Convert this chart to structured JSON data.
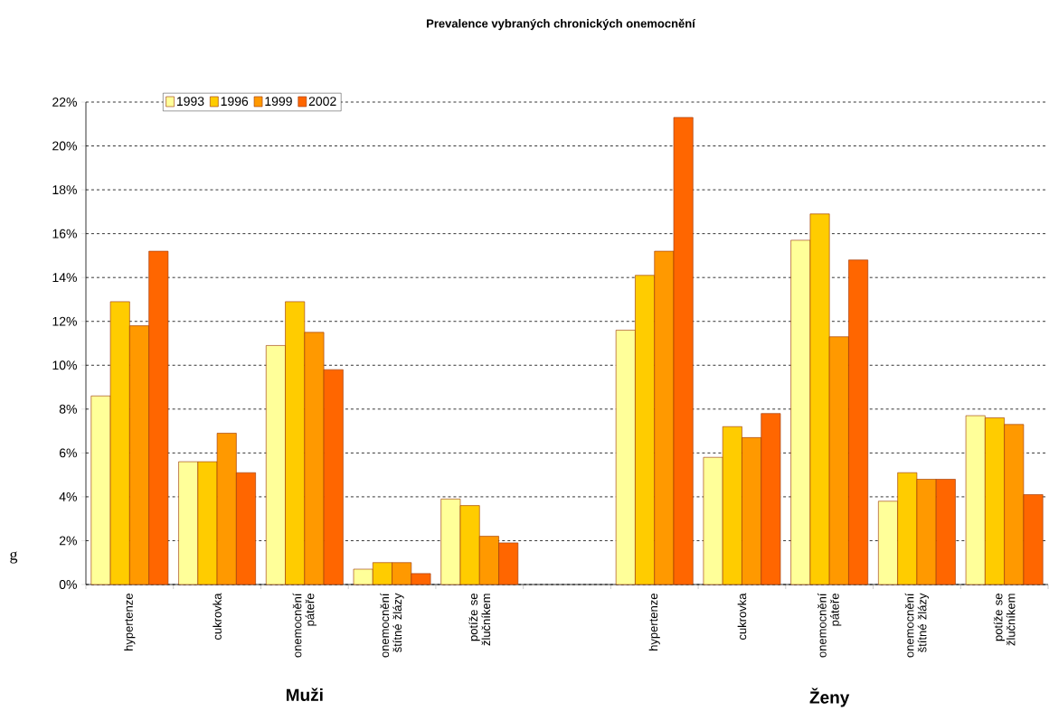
{
  "chart_data": {
    "type": "bar",
    "title": "Prevalence vybraných chronických onemocnění",
    "ylabel": "g",
    "categories": [
      "hypertenze",
      "cukrovka",
      "onemocnění páteře",
      "onemocnění štítné žlázy",
      "potíže se žlučníkem",
      null,
      "hypertenze",
      "cukrovka",
      "onemocnění páteře",
      "onemocnění štítné žlázy",
      "potíže se žlučníkem"
    ],
    "series": [
      {
        "name": "1993",
        "color": "#ffff99",
        "values": [
          8.6,
          5.6,
          10.9,
          0.7,
          3.9,
          null,
          11.6,
          5.8,
          15.7,
          3.8,
          7.7
        ]
      },
      {
        "name": "1996",
        "color": "#ffcc00",
        "values": [
          12.9,
          5.6,
          12.9,
          1.0,
          3.6,
          null,
          14.1,
          7.2,
          16.9,
          5.1,
          7.6
        ]
      },
      {
        "name": "1999",
        "color": "#ff9900",
        "values": [
          11.8,
          6.9,
          11.5,
          1.0,
          2.2,
          null,
          15.2,
          6.7,
          11.3,
          4.8,
          7.3
        ]
      },
      {
        "name": "2002",
        "color": "#ff6600",
        "values": [
          15.2,
          5.1,
          9.8,
          0.5,
          1.9,
          null,
          21.3,
          7.8,
          14.8,
          4.8,
          4.1
        ]
      }
    ],
    "annotations": [
      "Muži",
      "Ženy"
    ],
    "ylim": [
      0,
      22
    ],
    "yticks": [
      {
        "value": 0,
        "label": "0%"
      },
      {
        "value": 2,
        "label": "2%"
      },
      {
        "value": 4,
        "label": "4%"
      },
      {
        "value": 6,
        "label": "6%"
      },
      {
        "value": 8,
        "label": "8%"
      },
      {
        "value": 10,
        "label": "10%"
      },
      {
        "value": 12,
        "label": "12%"
      },
      {
        "value": 14,
        "label": "14%"
      },
      {
        "value": 16,
        "label": "16%"
      },
      {
        "value": 18,
        "label": "18%"
      },
      {
        "value": 20,
        "label": "20%"
      },
      {
        "value": 22,
        "label": "22%"
      }
    ],
    "grid": "y",
    "legend": "top left"
  }
}
